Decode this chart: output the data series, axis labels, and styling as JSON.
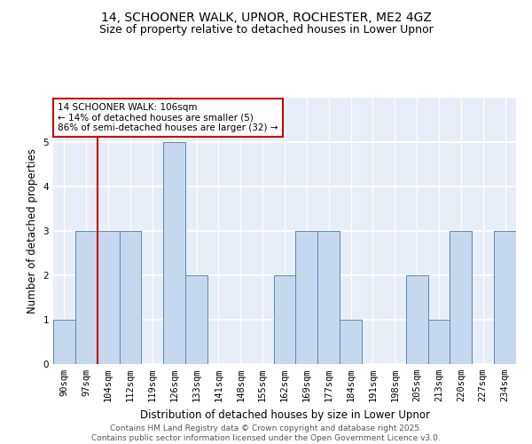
{
  "title_line1": "14, SCHOONER WALK, UPNOR, ROCHESTER, ME2 4GZ",
  "title_line2": "Size of property relative to detached houses in Lower Upnor",
  "xlabel": "Distribution of detached houses by size in Lower Upnor",
  "ylabel": "Number of detached properties",
  "categories": [
    "90sqm",
    "97sqm",
    "104sqm",
    "112sqm",
    "119sqm",
    "126sqm",
    "133sqm",
    "141sqm",
    "148sqm",
    "155sqm",
    "162sqm",
    "169sqm",
    "177sqm",
    "184sqm",
    "191sqm",
    "198sqm",
    "205sqm",
    "213sqm",
    "220sqm",
    "227sqm",
    "234sqm"
  ],
  "values": [
    1,
    3,
    3,
    3,
    0,
    5,
    2,
    0,
    0,
    0,
    2,
    3,
    3,
    1,
    0,
    0,
    2,
    1,
    3,
    0,
    3
  ],
  "bar_color": "#c5d8ed",
  "bar_edge_color": "#5b8ab5",
  "annotation_text": "14 SCHOONER WALK: 106sqm\n← 14% of detached houses are smaller (5)\n86% of semi-detached houses are larger (32) →",
  "annotation_box_color": "#ffffff",
  "annotation_box_edge_color": "#cc0000",
  "vline_color": "#cc0000",
  "vline_x": 1.5,
  "ylim": [
    0,
    6
  ],
  "yticks": [
    0,
    1,
    2,
    3,
    4,
    5
  ],
  "background_color": "#e8eef7",
  "grid_color": "#ffffff",
  "footer_line1": "Contains HM Land Registry data © Crown copyright and database right 2025.",
  "footer_line2": "Contains public sector information licensed under the Open Government Licence v3.0.",
  "title_fontsize": 10,
  "subtitle_fontsize": 9,
  "axis_label_fontsize": 8.5,
  "tick_fontsize": 7.5,
  "annotation_fontsize": 7.5,
  "footer_fontsize": 6.5
}
